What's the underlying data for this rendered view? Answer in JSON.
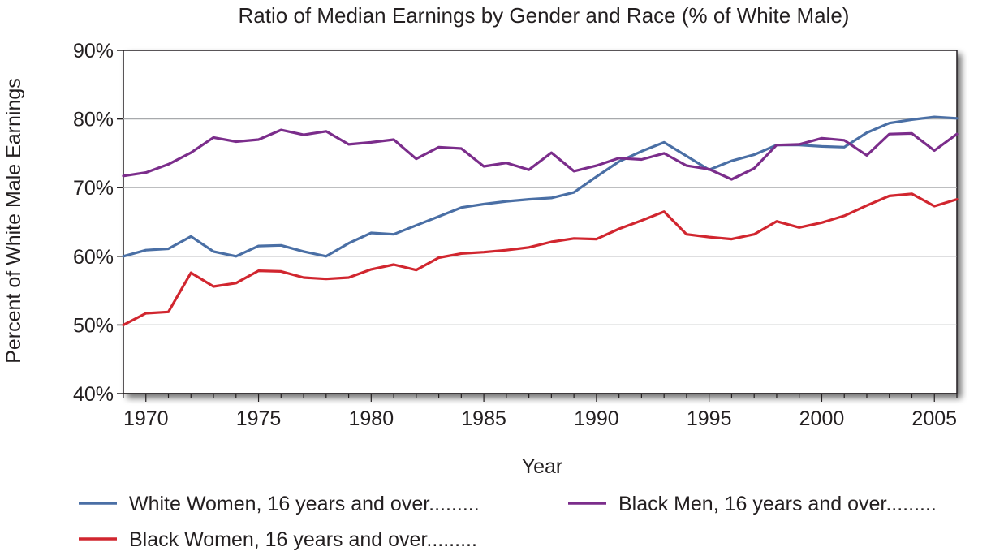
{
  "chart_data": {
    "type": "line",
    "title": "Ratio of Median Earnings by Gender and Race (% of  White Male)",
    "xlabel": "Year",
    "ylabel": "Percent of White Male Earnings",
    "xlim": [
      1969,
      2006
    ],
    "ylim": [
      40,
      90
    ],
    "x_ticks": [
      1970,
      1975,
      1980,
      1985,
      1990,
      1995,
      2000,
      2005
    ],
    "y_ticks": [
      40,
      50,
      60,
      70,
      80,
      90
    ],
    "y_tick_labels": [
      "40%",
      "50%",
      "60%",
      "70%",
      "80%",
      "90%"
    ],
    "grid": "horizontal",
    "legend_position": "bottom",
    "x": [
      1969,
      1970,
      1971,
      1972,
      1973,
      1974,
      1975,
      1976,
      1977,
      1978,
      1979,
      1980,
      1981,
      1982,
      1983,
      1984,
      1985,
      1986,
      1987,
      1988,
      1989,
      1990,
      1991,
      1992,
      1993,
      1994,
      1995,
      1996,
      1997,
      1998,
      1999,
      2000,
      2001,
      2002,
      2003,
      2004,
      2005,
      2006
    ],
    "series": [
      {
        "name": "White Women, 16 years and over.........",
        "color": "#4a6fa5",
        "values": [
          60.0,
          60.9,
          61.1,
          62.9,
          60.7,
          60.0,
          61.5,
          61.6,
          60.7,
          60.0,
          61.9,
          63.4,
          63.2,
          64.5,
          65.8,
          67.1,
          67.6,
          68.0,
          68.3,
          68.5,
          69.3,
          71.6,
          73.8,
          75.3,
          76.6,
          74.6,
          72.6,
          73.9,
          74.8,
          76.2,
          76.2,
          76.0,
          75.9,
          78.0,
          79.4,
          79.9,
          80.3,
          80.1
        ]
      },
      {
        "name": "Black Men, 16 years and over.........",
        "color": "#7b2d8b",
        "values": [
          71.7,
          72.2,
          73.4,
          75.1,
          77.3,
          76.7,
          77.0,
          78.4,
          77.7,
          78.2,
          76.3,
          76.6,
          77.0,
          74.2,
          75.9,
          75.7,
          73.1,
          73.6,
          72.6,
          75.1,
          72.4,
          73.2,
          74.3,
          74.1,
          75.0,
          73.2,
          72.7,
          71.2,
          72.8,
          76.2,
          76.3,
          77.2,
          76.9,
          74.7,
          77.8,
          77.9,
          75.4,
          77.8
        ]
      },
      {
        "name": "Black Women, 16 years and over.........",
        "color": "#d1262f",
        "values": [
          50.0,
          51.7,
          51.9,
          57.6,
          55.6,
          56.1,
          57.9,
          57.8,
          56.9,
          56.7,
          56.9,
          58.1,
          58.8,
          58.0,
          59.8,
          60.4,
          60.6,
          60.9,
          61.3,
          62.1,
          62.6,
          62.5,
          64.0,
          65.2,
          66.5,
          63.2,
          62.8,
          62.5,
          63.2,
          65.1,
          64.2,
          64.9,
          65.9,
          67.4,
          68.8,
          69.1,
          67.3,
          68.3
        ]
      }
    ]
  }
}
